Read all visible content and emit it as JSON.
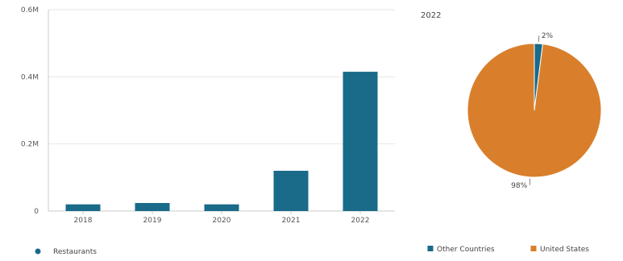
{
  "chart_data": [
    {
      "type": "bar",
      "title": "",
      "xlabel": "",
      "ylabel": "",
      "categories": [
        "2018",
        "2019",
        "2020",
        "2021",
        "2022"
      ],
      "series": [
        {
          "name": "Restaurants",
          "values": [
            0.02,
            0.024,
            0.02,
            0.12,
            0.415
          ]
        }
      ],
      "ylim": [
        0,
        0.6
      ],
      "yticks": [
        0,
        0.2,
        0.4,
        0.6
      ],
      "ytick_labels": [
        "0",
        "0.2M",
        "0.4M",
        "0.6M"
      ],
      "grid": true,
      "legend": "bottom-left",
      "colors": {
        "bar": "#1a6a89",
        "grid": "#e6e6e6",
        "axis": "#cccccc"
      }
    },
    {
      "type": "pie",
      "title": "2022",
      "slices": [
        {
          "name": "Other Countries",
          "value": 2,
          "label": "2%",
          "color": "#1a6a89"
        },
        {
          "name": "United States",
          "value": 98,
          "label": "98%",
          "color": "#d97f2b"
        }
      ],
      "legend": "bottom"
    }
  ]
}
